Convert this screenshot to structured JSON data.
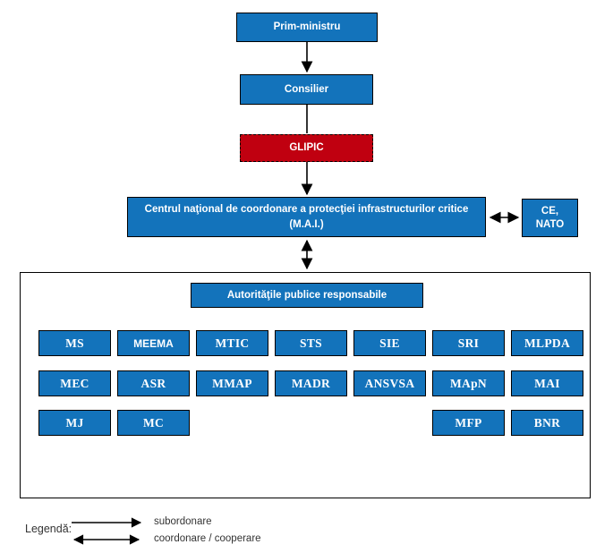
{
  "diagram": {
    "nodes": {
      "prim_ministru": {
        "label": "Prim-ministru"
      },
      "consilier": {
        "label": "Consilier"
      },
      "glipic": {
        "label": "GLIPIC"
      },
      "centrul": {
        "label_line1": "Centrul naţional de coordonare a protecţiei infrastructurilor critice",
        "label_line2": "(M.A.I.)"
      },
      "ce_nato": {
        "label_line1": "CE,",
        "label_line2": "NATO"
      },
      "autoritati": {
        "label": "Autorităţile publice responsabile"
      }
    },
    "authorities": {
      "rows": [
        [
          "MS",
          "MEEMA",
          "MTIC",
          "STS",
          "SIE",
          "SRI",
          "MLPDA"
        ],
        [
          "MEC",
          "ASR",
          "MMAP",
          "MADR",
          "ANSVSA",
          "MApN",
          "MAI"
        ],
        [
          "MJ",
          "MC",
          "",
          "",
          "",
          "MFP",
          "BNR"
        ]
      ],
      "sans_labels": [
        "MEEMA"
      ]
    },
    "legend": {
      "title": "Legendă:",
      "items": [
        {
          "symbol": "single-arrow",
          "label": "subordonare"
        },
        {
          "symbol": "double-arrow",
          "label": "coordonare / cooperare"
        }
      ]
    },
    "colors": {
      "box_blue": "#1373bb",
      "box_red": "#c00010",
      "connector": "#000000",
      "box_text": "#ffffff"
    }
  }
}
